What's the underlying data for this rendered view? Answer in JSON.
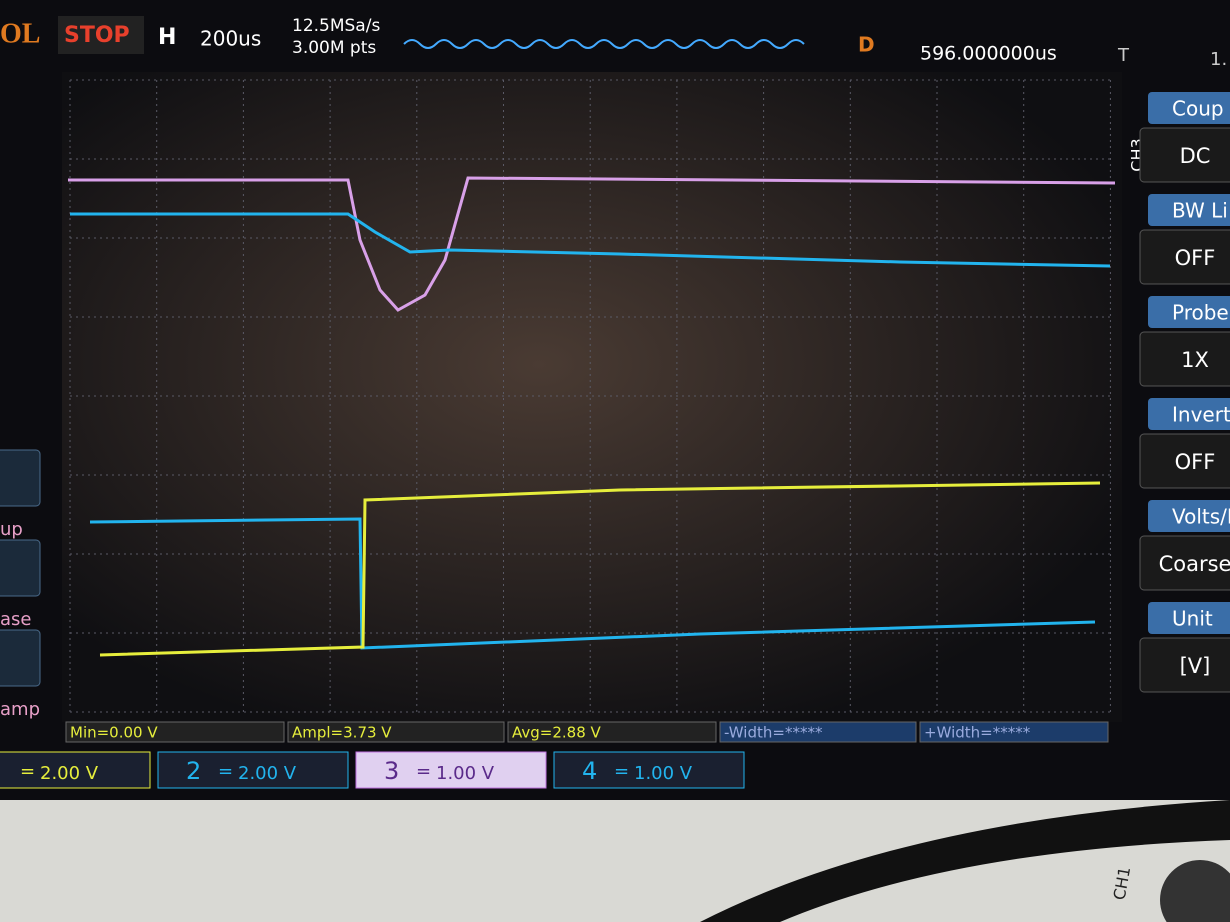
{
  "header": {
    "brand": "OL",
    "status": "STOP",
    "timebase_label": "H",
    "timebase": "200us",
    "sample_rate": "12.5MSa/s",
    "memory_depth": "3.00M pts",
    "delay_label": "D",
    "delay": "596.000000us",
    "trigger_label": "T",
    "trigger_value": "1."
  },
  "side_menu": {
    "channel": "CH3",
    "items": [
      {
        "label": "Coup",
        "value": "DC"
      },
      {
        "label": "BW Li",
        "value": "OFF"
      },
      {
        "label": "Probe",
        "value": "1X"
      },
      {
        "label": "Invert",
        "value": "OFF"
      },
      {
        "label": "Volts/Di",
        "value": "Coarse"
      },
      {
        "label": "Unit",
        "value": "[V]"
      }
    ]
  },
  "left_menu": [
    "up",
    "ase",
    "amp"
  ],
  "measurements": [
    "Min=0.00 V",
    "Ampl=3.73 V",
    "Avg=2.88 V",
    "-Width=*****",
    "+Width=*****"
  ],
  "channels": [
    {
      "coupling": "=",
      "scale": "2.00 V"
    },
    {
      "number": "2",
      "coupling": "=",
      "scale": "2.00 V"
    },
    {
      "number": "3",
      "coupling": "=",
      "scale": "1.00 V"
    },
    {
      "number": "4",
      "coupling": "=",
      "scale": "1.00 V"
    }
  ],
  "panel": {
    "label": "CH1"
  }
}
